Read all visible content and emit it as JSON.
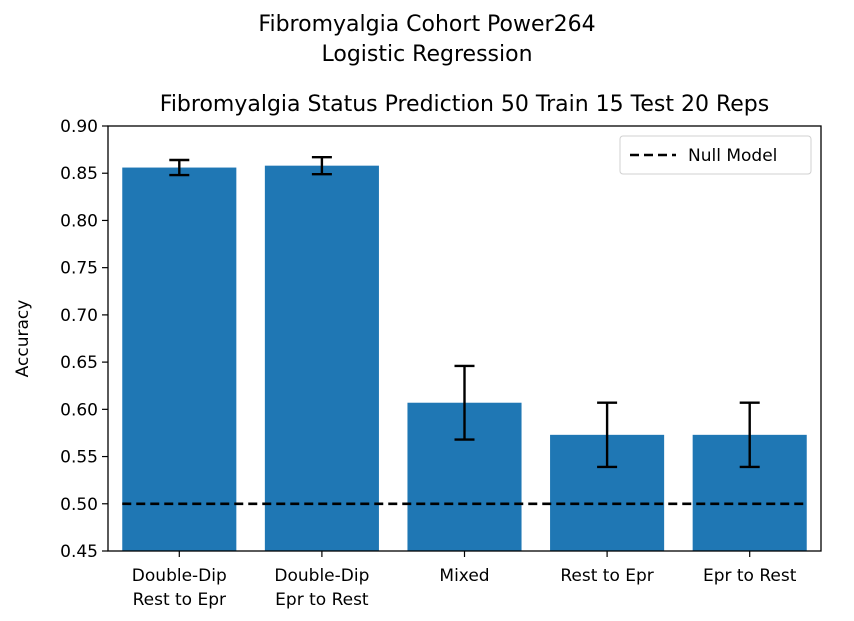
{
  "figure": {
    "suptitle_line1": "Fibromyalgia Cohort Power264",
    "suptitle_line2": "Logistic Regression"
  },
  "chart_data": {
    "type": "bar",
    "title": "Fibromyalgia Status Prediction 50 Train 15 Test 20 Reps",
    "xlabel": "",
    "ylabel": "Accuracy",
    "categories": [
      [
        "Double-Dip",
        "Rest to Epr"
      ],
      [
        "Double-Dip",
        "Epr to Rest"
      ],
      [
        "Mixed"
      ],
      [
        "Rest to Epr"
      ],
      [
        "Epr to Rest"
      ]
    ],
    "values": [
      0.856,
      0.858,
      0.607,
      0.573,
      0.573
    ],
    "errors": [
      0.008,
      0.009,
      0.039,
      0.034,
      0.034
    ],
    "ylim": [
      0.45,
      0.9
    ],
    "yticks": [
      "0.45",
      "0.50",
      "0.55",
      "0.60",
      "0.65",
      "0.70",
      "0.75",
      "0.80",
      "0.85",
      "0.90"
    ],
    "null_model": {
      "name": "Null Model",
      "value": 0.5
    },
    "bar_color": "#1f77b4",
    "legend_position": "upper right",
    "grid": false
  }
}
